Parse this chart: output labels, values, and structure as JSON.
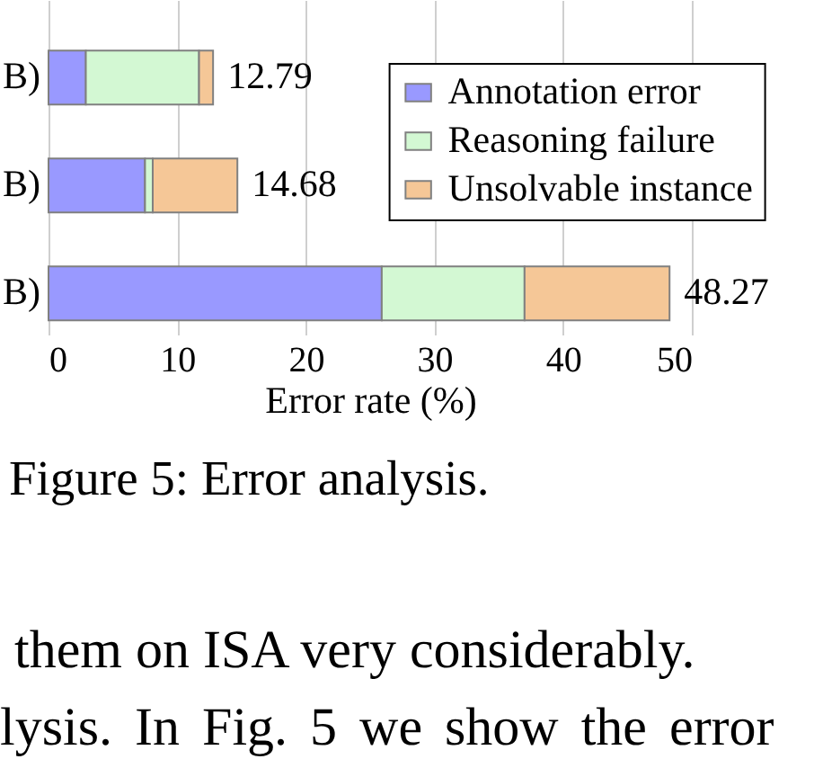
{
  "chart_data": {
    "type": "bar",
    "orientation": "horizontal",
    "stacked": true,
    "categories": [
      "B)",
      "B)",
      "B)"
    ],
    "series": [
      {
        "name": "Annotation error",
        "color": "#9999ff",
        "values": [
          2.9,
          7.5,
          25.9
        ]
      },
      {
        "name": "Reasoning failure",
        "color": "#d3f8d3",
        "values": [
          8.8,
          0.6,
          11.1
        ]
      },
      {
        "name": "Unsolvable instance",
        "color": "#f5c797",
        "values": [
          1.09,
          6.58,
          11.27
        ]
      }
    ],
    "totals": [
      "12.79",
      "14.68",
      "48.27"
    ],
    "xlabel": "Error rate (%)",
    "xlim": [
      0,
      50
    ],
    "xticks": [
      0,
      10,
      20,
      30,
      40,
      50
    ],
    "grid": "x",
    "legend": "top right",
    "annotations": [
      "Figure 5: Error analysis.",
      "them on ISA very considerably.",
      "lysis. In Fig. 5 we show the error"
    ]
  }
}
